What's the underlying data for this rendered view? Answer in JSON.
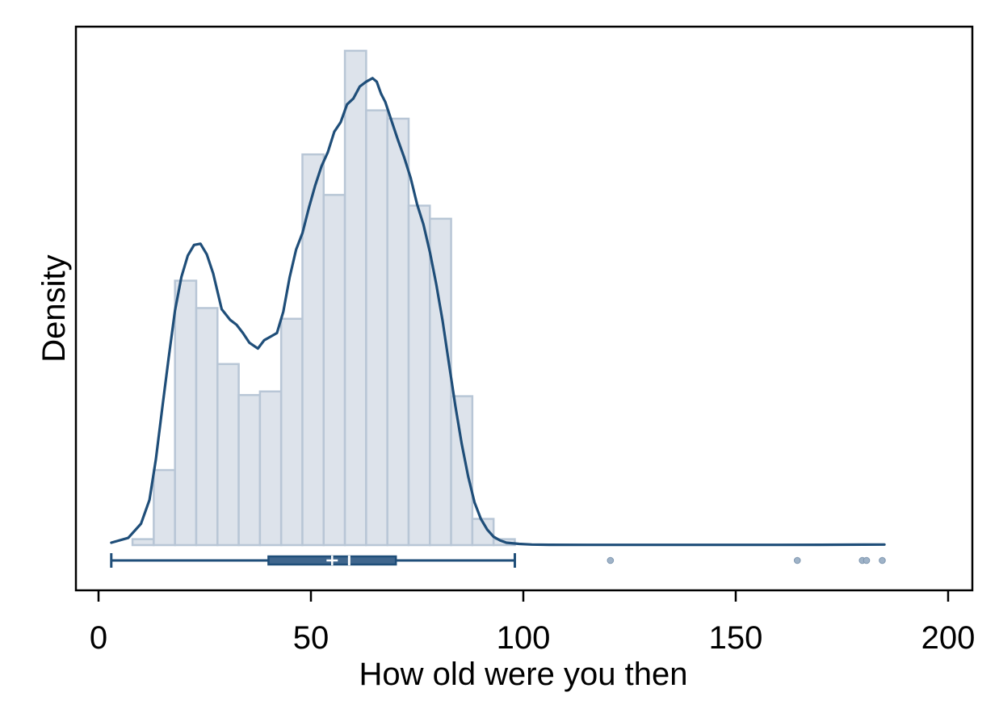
{
  "chart_data": {
    "type": "histogram",
    "xlabel": "How old were you then",
    "ylabel": "Density",
    "xlim": [
      -5,
      205
    ],
    "x_ticks": [
      0,
      50,
      100,
      150,
      200
    ],
    "x_tick_labels": [
      "0",
      "50",
      "100",
      "150",
      "200"
    ],
    "y_ticks_shown": false,
    "grid": false,
    "legend": "none",
    "histogram": {
      "bin_width": 5,
      "bins": [
        {
          "start": 8,
          "end": 13,
          "density": 0.0005
        },
        {
          "start": 13,
          "end": 18,
          "density": 0.0063
        },
        {
          "start": 18,
          "end": 23,
          "density": 0.0222
        },
        {
          "start": 23,
          "end": 28,
          "density": 0.0199
        },
        {
          "start": 28,
          "end": 33,
          "density": 0.0152
        },
        {
          "start": 33,
          "end": 38,
          "density": 0.0126
        },
        {
          "start": 38,
          "end": 43,
          "density": 0.0129
        },
        {
          "start": 43,
          "end": 48,
          "density": 0.019
        },
        {
          "start": 48,
          "end": 53,
          "density": 0.0328
        },
        {
          "start": 53,
          "end": 58,
          "density": 0.0294
        },
        {
          "start": 58,
          "end": 63,
          "density": 0.0415
        },
        {
          "start": 63,
          "end": 68,
          "density": 0.0365
        },
        {
          "start": 68,
          "end": 73,
          "density": 0.0358
        },
        {
          "start": 73,
          "end": 78,
          "density": 0.0285
        },
        {
          "start": 78,
          "end": 83,
          "density": 0.0274
        },
        {
          "start": 83,
          "end": 88,
          "density": 0.0125
        },
        {
          "start": 88,
          "end": 93,
          "density": 0.0022
        },
        {
          "start": 93,
          "end": 98,
          "density": 0.0005
        }
      ]
    },
    "density_curve": {
      "x": [
        3,
        7,
        10,
        12,
        13.5,
        15,
        16.5,
        18,
        19.5,
        21,
        22.5,
        24,
        25.5,
        27,
        29,
        31,
        32.5,
        34,
        35.5,
        37.5,
        39,
        40.5,
        42,
        43.5,
        45,
        46.5,
        48,
        49.5,
        51,
        52.5,
        54,
        55.5,
        57,
        58.5,
        60,
        61.5,
        63,
        64.5,
        65.5,
        66.5,
        67.5,
        69,
        70.5,
        72,
        73.5,
        75,
        76.5,
        78,
        79.5,
        81,
        82.5,
        84,
        85.5,
        87,
        88.5,
        90,
        91.5,
        93,
        94.5,
        96,
        99,
        102,
        106,
        115,
        130,
        145,
        160,
        170,
        180,
        185
      ],
      "y": [
        0.0002,
        0.0006,
        0.0018,
        0.0038,
        0.0072,
        0.0115,
        0.0157,
        0.0197,
        0.0225,
        0.0243,
        0.0252,
        0.0253,
        0.0244,
        0.0228,
        0.0198,
        0.0189,
        0.0185,
        0.0178,
        0.017,
        0.0165,
        0.0172,
        0.0175,
        0.0178,
        0.0196,
        0.0225,
        0.0248,
        0.0262,
        0.0283,
        0.0302,
        0.0318,
        0.033,
        0.0347,
        0.0355,
        0.037,
        0.0375,
        0.0385,
        0.0389,
        0.0392,
        0.0389,
        0.0379,
        0.0372,
        0.0356,
        0.034,
        0.0325,
        0.0308,
        0.0286,
        0.0269,
        0.0246,
        0.0219,
        0.0188,
        0.0152,
        0.0117,
        0.0085,
        0.0058,
        0.0036,
        0.0022,
        0.0013,
        0.0007,
        0.0004,
        0.0002,
        0.0001,
        5e-05,
        3e-05,
        2e-05,
        2e-05,
        2e-05,
        2e-05,
        3e-05,
        4e-05,
        5e-05
      ]
    },
    "boxplot": {
      "whisker_low": 3,
      "q1": 40,
      "median": 59,
      "mean": 55,
      "q3": 70,
      "whisker_high": 98,
      "outliers": [
        120.5,
        164.5,
        179.8,
        180.8,
        184.5
      ]
    },
    "colors": {
      "curve": "#1f4e79",
      "bar_fill": "#dde3eb",
      "bar_stroke": "#b8c6d6",
      "box_fill": "#3f668d",
      "outlier": "#9fb3c8",
      "axis": "#000000"
    }
  }
}
